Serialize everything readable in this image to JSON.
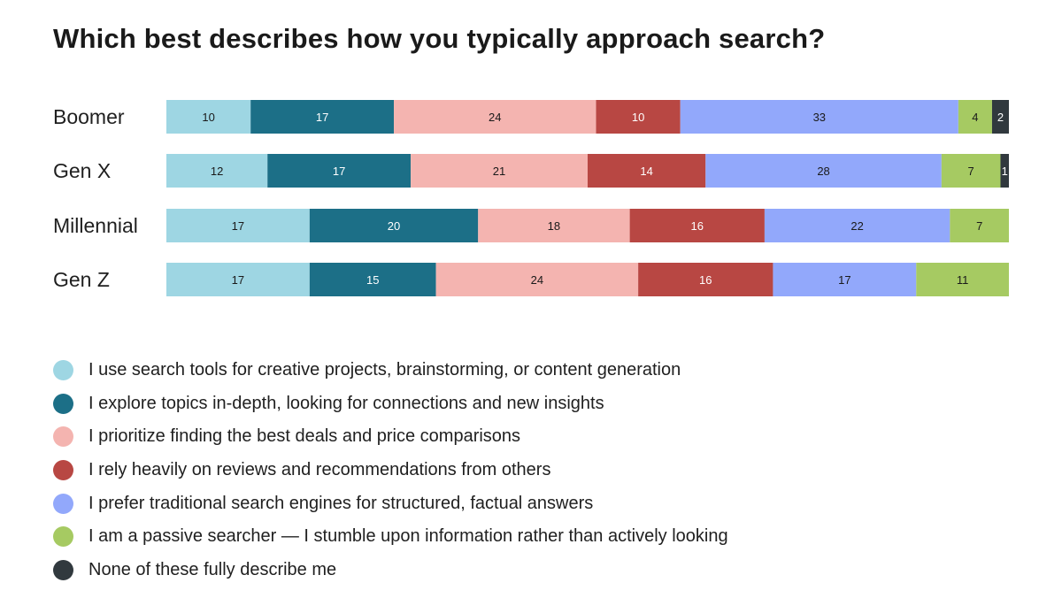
{
  "chart_data": {
    "type": "bar",
    "orientation": "horizontal",
    "stacked": true,
    "title": "Which best describes how you typically approach search?",
    "categories": [
      "Boomer",
      "Gen X",
      "Millennial",
      "Gen Z"
    ],
    "series": [
      {
        "name": "I use search tools for creative projects, brainstorming, or content generation",
        "color": "#9ed6e3",
        "label_color": "#1a1a1a",
        "values": [
          10,
          12,
          17,
          17
        ]
      },
      {
        "name": "I explore topics in-depth, looking for connections and new insights",
        "color": "#1c6f87",
        "label_color": "#ffffff",
        "values": [
          17,
          17,
          20,
          15
        ]
      },
      {
        "name": "I prioritize finding the best deals and price comparisons",
        "color": "#f4b4b0",
        "label_color": "#1a1a1a",
        "values": [
          24,
          21,
          18,
          24
        ]
      },
      {
        "name": "I rely heavily on reviews and recommendations from others",
        "color": "#b84743",
        "label_color": "#ffffff",
        "values": [
          10,
          14,
          16,
          16
        ]
      },
      {
        "name": "I prefer traditional search engines for structured, factual answers",
        "color": "#92a8fb",
        "label_color": "#1a1a1a",
        "values": [
          33,
          28,
          22,
          17
        ]
      },
      {
        "name": "I am a passive searcher — I stumble upon information rather than actively looking",
        "color": "#a6ca62",
        "label_color": "#1a1a1a",
        "values": [
          4,
          7,
          7,
          11
        ]
      },
      {
        "name": "None of these fully describe me",
        "color": "#31393e",
        "label_color": "#ffffff",
        "values": [
          2,
          1,
          0,
          0
        ]
      }
    ],
    "xlim": [
      0,
      100
    ],
    "grid": false,
    "legend_position": "bottom-left"
  }
}
